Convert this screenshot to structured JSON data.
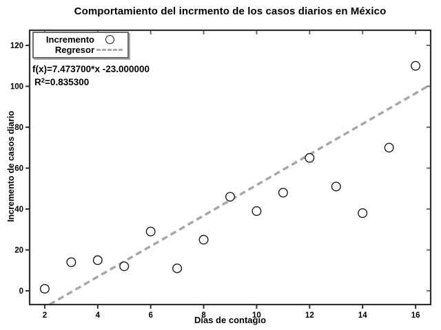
{
  "title": "Comportamiento del incrmento de los casos diarios en México",
  "axes": {
    "xlabel": "Días de contagio",
    "ylabel": "Incremento de casos diario"
  },
  "legend": {
    "items": [
      {
        "label": "Incremento",
        "marker": "circle"
      },
      {
        "label": "Regresor",
        "marker": "dashed-line"
      }
    ]
  },
  "annotation": {
    "fx": "f(x)=7.473700*x -23.000000",
    "r2_base": "R",
    "r2_sup": "2",
    "r2_rest": "=0.835300"
  },
  "colors": {
    "box": "#2e2e2e",
    "minor_tick": "#6e6e6e",
    "regressor": "#a8a8a8",
    "marker_stroke": "#1a1a1a",
    "marker_fill": "#ffffff",
    "text": "#000000"
  },
  "chart_data": {
    "type": "scatter",
    "title": "Comportamiento del incrmento de los casos diarios en México",
    "xlabel": "Días de contagio",
    "ylabel": "Incremento de casos diario",
    "xlim": [
      1.43,
      16.57
    ],
    "ylim": [
      -6.7,
      127.4
    ],
    "x_ticks": [
      2,
      4,
      6,
      8,
      10,
      12,
      14,
      16
    ],
    "y_ticks": [
      0,
      20,
      40,
      60,
      80,
      100,
      120
    ],
    "grid": false,
    "legend_position": "upper-left",
    "series": [
      {
        "name": "Incremento",
        "type": "scatter",
        "marker": "circle",
        "x": [
          2,
          3,
          4,
          5,
          6,
          7,
          8,
          9,
          10,
          11,
          12,
          13,
          14,
          15,
          16
        ],
        "y": [
          1,
          14,
          15,
          12,
          29,
          11,
          25,
          46,
          39,
          48,
          65,
          51,
          38,
          70,
          110
        ]
      },
      {
        "name": "Regresor",
        "type": "line",
        "style": "dashed",
        "slope": 7.4737,
        "intercept": -23.0
      }
    ],
    "annotations": [
      "f(x)=7.473700*x -23.000000",
      "R²=0.835300"
    ],
    "r_squared": 0.8353
  }
}
